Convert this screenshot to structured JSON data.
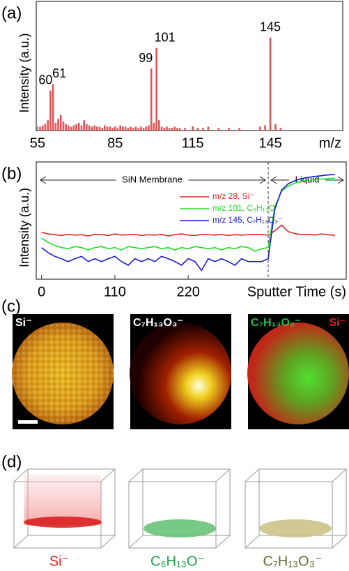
{
  "chart_data": [
    {
      "type": "bar",
      "panel_label": "(a)",
      "y_label": "Intensity (a.u.)",
      "x_label": "m/z",
      "color": "#e05555",
      "x": [
        56,
        57,
        58,
        59,
        60,
        61,
        62,
        63,
        64,
        65,
        66,
        67,
        68,
        69,
        70,
        71,
        72,
        73,
        74,
        75,
        76,
        77,
        78,
        79,
        80,
        81,
        82,
        83,
        84,
        85,
        86,
        87,
        88,
        89,
        90,
        91,
        92,
        93,
        94,
        95,
        96,
        97,
        98,
        99,
        100,
        101,
        102,
        103,
        104,
        105,
        106,
        107,
        108,
        109,
        110,
        112,
        115,
        117,
        119,
        121,
        125,
        129,
        133,
        141,
        143,
        145,
        147,
        149
      ],
      "values": [
        3,
        4,
        5,
        8,
        31,
        36,
        6,
        9,
        12,
        7,
        5,
        4,
        3,
        4,
        5,
        6,
        4,
        8,
        5,
        4,
        3,
        4,
        3,
        3,
        2,
        4,
        3,
        3,
        2,
        3,
        2,
        4,
        3,
        3,
        2,
        3,
        2,
        3,
        2,
        3,
        2,
        3,
        4,
        48,
        6,
        64,
        8,
        3,
        2,
        3,
        2,
        2,
        3,
        2,
        2,
        2,
        3,
        2,
        2,
        3,
        2,
        2,
        2,
        3,
        4,
        72,
        5,
        2
      ],
      "annotations": [
        {
          "x": 60,
          "text": "60"
        },
        {
          "x": 61,
          "text": "61"
        },
        {
          "x": 99,
          "text": "99"
        },
        {
          "x": 101,
          "text": "101"
        },
        {
          "x": 145,
          "text": "145"
        }
      ],
      "xlim": [
        54.5,
        173
      ],
      "xticks": [
        55,
        85,
        115,
        145
      ],
      "ylim": [
        0,
        100
      ]
    },
    {
      "type": "line",
      "panel_label": "(b)",
      "y_label": "Intensity (a.u.)",
      "x_label": "Sputter Time (s)",
      "log_scale": true,
      "x": [
        0,
        10,
        20,
        30,
        40,
        50,
        60,
        70,
        80,
        90,
        100,
        110,
        120,
        130,
        140,
        150,
        160,
        170,
        180,
        190,
        200,
        210,
        220,
        230,
        240,
        250,
        260,
        270,
        280,
        290,
        300,
        310,
        320,
        330,
        340,
        350,
        360,
        370,
        380,
        390,
        400,
        410,
        420,
        430,
        440
      ],
      "series": [
        {
          "name": "m/z 28, Si⁻",
          "color": "#e02828",
          "values": [
            40,
            35,
            33,
            31,
            34,
            32,
            33,
            30,
            34,
            33,
            31,
            35,
            32,
            33,
            34,
            31,
            33,
            32,
            34,
            30,
            33,
            35,
            32,
            31,
            34,
            33,
            32,
            34,
            31,
            33,
            32,
            33,
            34,
            33,
            32,
            45,
            70,
            42,
            36,
            33,
            34,
            32,
            35,
            33,
            31
          ]
        },
        {
          "name": "m/z 101, C₆H₁₃O⁻",
          "color": "#22dd22",
          "values": [
            25,
            18,
            14,
            12,
            11,
            13,
            12,
            10,
            12,
            13,
            11,
            12,
            10,
            13,
            12,
            11,
            12,
            13,
            11,
            12,
            10,
            12,
            11,
            13,
            12,
            11,
            12,
            10,
            12,
            11,
            13,
            12,
            9,
            11,
            12,
            300,
            1000,
            1500,
            1900,
            2200,
            2400,
            2500,
            2600,
            2700,
            2800
          ]
        },
        {
          "name": "m/z 145, C₇H₁₃O₃⁻",
          "color": "#1a1ad0",
          "values": [
            12,
            8,
            6,
            5,
            4,
            5,
            6,
            4,
            5,
            4,
            5,
            6,
            4,
            3,
            5,
            4,
            5,
            4,
            6,
            5,
            4,
            3,
            5,
            4,
            2,
            5,
            4,
            5,
            4,
            3,
            5,
            4,
            4,
            4,
            5,
            250,
            1100,
            1800,
            2300,
            2700,
            3000,
            3200,
            3400,
            3600,
            3700
          ]
        }
      ],
      "boundary_x": 340,
      "annotations": [
        {
          "text": "SiN Membrane"
        },
        {
          "text": "Liquid"
        }
      ],
      "xlim": [
        -8,
        457
      ],
      "xticks": [
        0,
        110,
        220
      ],
      "ylim": [
        1,
        10000
      ]
    }
  ],
  "panel_c": {
    "label": "(c)",
    "images": [
      {
        "labels": [
          "Si⁻"
        ]
      },
      {
        "labels": [
          "C₇H₁₃O₃⁻"
        ]
      },
      {
        "labels": [
          "C₇H₁₃O₃⁻",
          "Si⁻"
        ]
      }
    ]
  },
  "panel_d": {
    "label": "(d)",
    "captions": [
      "Si⁻",
      "C₆H₁₃O⁻",
      "C₇H₁₃O₃⁻"
    ]
  }
}
